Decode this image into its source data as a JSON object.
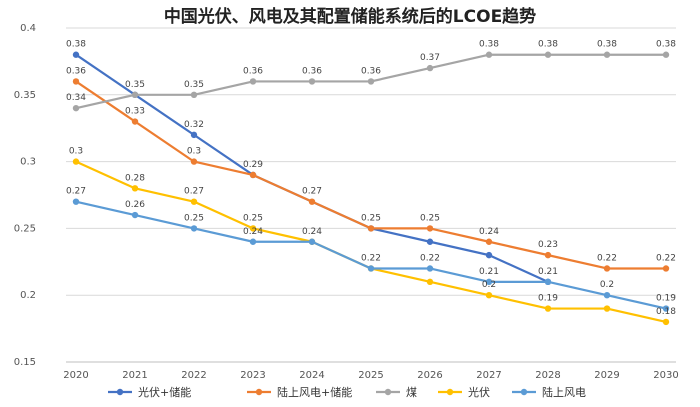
{
  "chart_data": {
    "type": "line",
    "title": "中国光伏、风电及其配置储能系统后的LCOE趋势",
    "xlabel": "",
    "ylabel": "",
    "ylim": [
      0.15,
      0.4
    ],
    "yticks": [
      "0.15",
      "0.2",
      "0.25",
      "0.3",
      "0.35",
      "0.4"
    ],
    "grid": true,
    "legend": "bottom",
    "categories": [
      "2020",
      "2021",
      "2022",
      "2023",
      "2024",
      "2025",
      "2026",
      "2027",
      "2028",
      "2029",
      "2030"
    ],
    "series": [
      {
        "name": "光伏+储能",
        "color": "#4472C4",
        "values": [
          0.38,
          0.35,
          0.32,
          0.29,
          null,
          0.25,
          0.24,
          0.23,
          0.21,
          null,
          null
        ],
        "labels": [
          "0.38",
          "0.35",
          "0.32",
          "",
          null,
          "",
          "",
          "",
          "",
          null,
          null
        ]
      },
      {
        "name": "陆上风电+储能",
        "color": "#ED7D31",
        "values": [
          0.36,
          0.33,
          0.3,
          0.29,
          0.27,
          0.25,
          0.25,
          0.24,
          0.23,
          0.22,
          0.22
        ],
        "labels": [
          "0.36",
          "0.33",
          "0.3",
          "0.29",
          "0.27",
          "0.25",
          "0.25",
          "0.24",
          "0.23",
          "0.22",
          "0.22"
        ]
      },
      {
        "name": "煤",
        "color": "#A5A5A5",
        "values": [
          0.34,
          0.35,
          0.35,
          0.36,
          0.36,
          0.36,
          0.37,
          0.38,
          0.38,
          0.38,
          0.38
        ],
        "labels": [
          "0.34",
          "",
          "0.35",
          "0.36",
          "0.36",
          "0.36",
          "0.37",
          "0.38",
          "0.38",
          "0.38",
          "0.38"
        ]
      },
      {
        "name": "光伏",
        "color": "#FFC000",
        "values": [
          0.3,
          0.28,
          0.27,
          0.25,
          0.24,
          0.22,
          0.21,
          0.2,
          0.19,
          0.19,
          0.18
        ],
        "labels": [
          "0.3",
          "0.28",
          "0.27",
          "0.25",
          "",
          "",
          "",
          "0.2",
          "0.19",
          "",
          "0.18"
        ]
      },
      {
        "name": "陆上风电",
        "color": "#5B9BD5",
        "values": [
          0.27,
          0.26,
          0.25,
          0.24,
          0.24,
          0.22,
          0.22,
          0.21,
          0.21,
          0.2,
          0.19
        ],
        "labels": [
          "0.27",
          "0.26",
          "0.25",
          "0.24",
          "0.24",
          "0.22",
          "0.22",
          "0.21",
          "0.21",
          "0.2",
          "0.19"
        ]
      }
    ]
  }
}
